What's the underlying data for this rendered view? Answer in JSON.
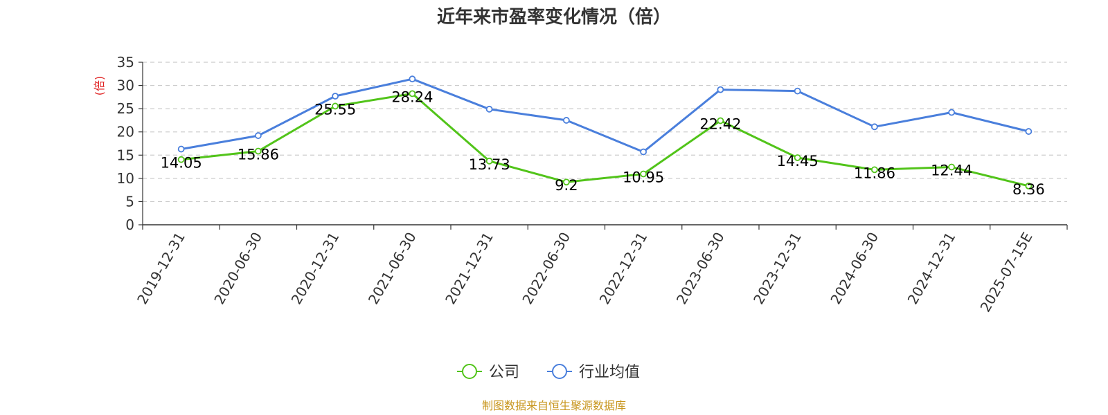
{
  "chart_data": {
    "type": "line",
    "title": "近年来市盈率变化情况（倍）",
    "ylabel": "(倍)",
    "xlabel": "",
    "ylim": [
      0,
      35
    ],
    "yticks": [
      0,
      5,
      10,
      15,
      20,
      25,
      30,
      35
    ],
    "grid": true,
    "legend_position": "bottom-center",
    "categories": [
      "2019-12-31",
      "2020-06-30",
      "2020-12-31",
      "2021-06-30",
      "2021-12-31",
      "2022-06-30",
      "2022-12-31",
      "2023-06-30",
      "2023-12-31",
      "2024-06-30",
      "2024-12-31",
      "2025-07-15E"
    ],
    "series": [
      {
        "name": "公司",
        "color": "#52c41a",
        "values": [
          14.05,
          15.86,
          25.55,
          28.24,
          13.73,
          9.2,
          10.95,
          22.42,
          14.45,
          11.86,
          12.44,
          8.36
        ],
        "labels": [
          "14.05",
          "15.86",
          "25.55",
          "28.24",
          "13.73",
          "9.2",
          "10.95",
          "22.42",
          "14.45",
          "11.86",
          "12.44",
          "8.36"
        ]
      },
      {
        "name": "行业均值",
        "color": "#4a7fdc",
        "values": [
          16.3,
          19.2,
          27.7,
          31.4,
          24.9,
          22.5,
          15.7,
          29.1,
          28.8,
          21.1,
          24.2,
          20.1
        ]
      }
    ],
    "source": "制图数据来自恒生聚源数据库",
    "source_color": "#c8961e",
    "ylabel_color": "#e02020"
  }
}
